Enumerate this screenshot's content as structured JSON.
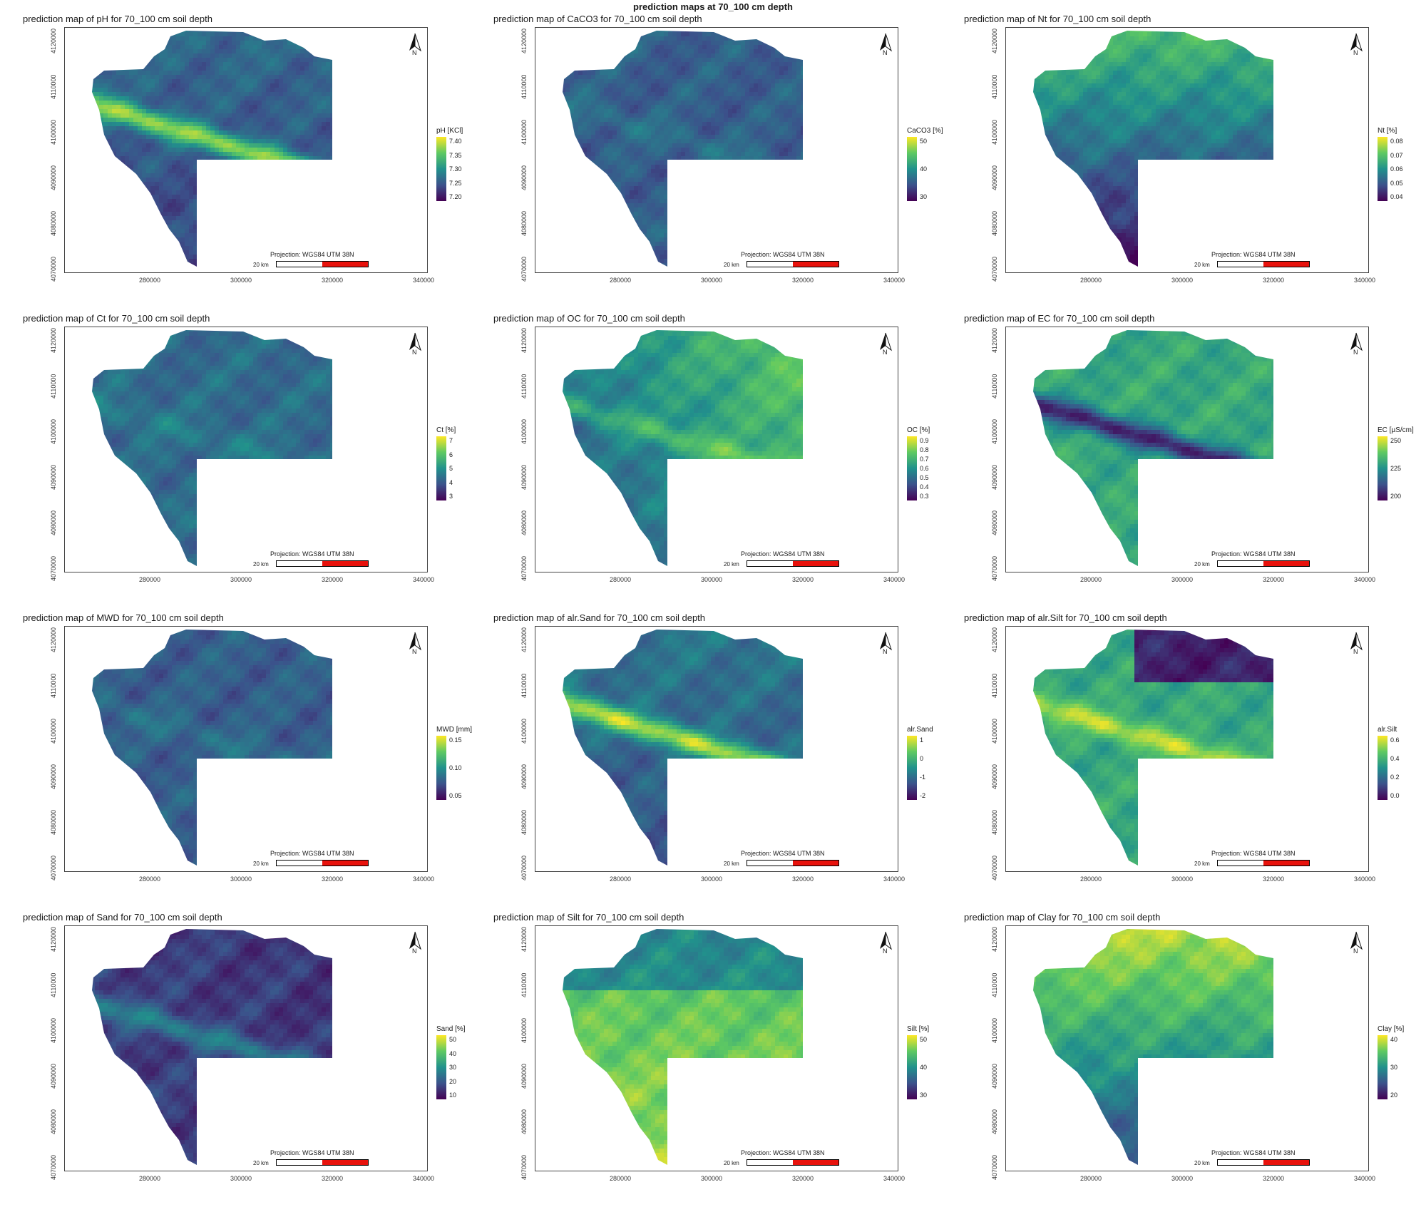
{
  "title": "prediction maps at 70_100 cm depth",
  "axes": {
    "y_ticks": [
      "4070000",
      "4080000",
      "4090000",
      "4100000",
      "4110000",
      "4120000"
    ],
    "x_ticks": [
      "280000",
      "300000",
      "320000",
      "340000"
    ]
  },
  "projection": "Projection: WGS84 UTM 38N",
  "scale": "20 km",
  "north_label": "N",
  "colormap": [
    "#440154",
    "#3b528b",
    "#21918c",
    "#5ec962",
    "#fde725"
  ],
  "panels": [
    {
      "title": "prediction map of pH for 70_100 cm soil depth",
      "legend": "pH [KCl]",
      "ticks": [
        "7.40",
        "7.35",
        "7.30",
        "7.25",
        "7.20"
      ],
      "pattern": "ridge",
      "base": 0.35
    },
    {
      "title": "prediction map of CaCO3 for 70_100 cm soil depth",
      "legend": "CaCO3 [%]",
      "ticks": [
        "50",
        "40",
        "30"
      ],
      "pattern": "flat",
      "base": 0.3
    },
    {
      "title": "prediction map of Nt for 70_100 cm soil depth",
      "legend": "Nt [%]",
      "ticks": [
        "0.08",
        "0.07",
        "0.06",
        "0.05",
        "0.04"
      ],
      "pattern": "north",
      "base": 0.35
    },
    {
      "title": "prediction map of Ct for 70_100 cm soil depth",
      "legend": "Ct [%]",
      "ticks": [
        "7",
        "6",
        "5",
        "4",
        "3"
      ],
      "pattern": "flat",
      "base": 0.35
    },
    {
      "title": "prediction map of OC for 70_100 cm soil depth",
      "legend": "OC [%]",
      "ticks": [
        "0.9",
        "0.8",
        "0.7",
        "0.6",
        "0.5",
        "0.4",
        "0.3"
      ],
      "pattern": "east",
      "base": 0.4
    },
    {
      "title": "prediction map of EC for 70_100 cm soil depth",
      "legend": "EC [µS/cm]",
      "ticks": [
        "250",
        "225",
        "200"
      ],
      "pattern": "inverse-ridge",
      "base": 0.6
    },
    {
      "title": "prediction map of MWD for 70_100 cm soil depth",
      "legend": "MWD [mm]",
      "ticks": [
        "0.15",
        "0.10",
        "0.05"
      ],
      "pattern": "flat",
      "base": 0.3
    },
    {
      "title": "prediction map of alr.Sand for 70_100 cm soil depth",
      "legend": "alr.Sand",
      "ticks": [
        "1",
        "0",
        "-1",
        "-2"
      ],
      "pattern": "ridge",
      "base": 0.4
    },
    {
      "title": "prediction map of alr.Silt for 70_100 cm soil depth",
      "legend": "alr.Silt",
      "ticks": [
        "0.6",
        "0.4",
        "0.2",
        "0.0"
      ],
      "pattern": "north-low",
      "base": 0.6
    },
    {
      "title": "prediction map of Sand for 70_100 cm soil depth",
      "legend": "Sand [%]",
      "ticks": [
        "50",
        "40",
        "30",
        "20",
        "10"
      ],
      "pattern": "ridge-low",
      "base": 0.2
    },
    {
      "title": "prediction map of Silt for 70_100 cm soil depth",
      "legend": "Silt [%]",
      "ticks": [
        "50",
        "40",
        "30"
      ],
      "pattern": "south-high",
      "base": 0.7
    },
    {
      "title": "prediction map of Clay for 70_100 cm soil depth",
      "legend": "Clay [%]",
      "ticks": [
        "40",
        "30",
        "20"
      ],
      "pattern": "north",
      "base": 0.55
    }
  ]
}
